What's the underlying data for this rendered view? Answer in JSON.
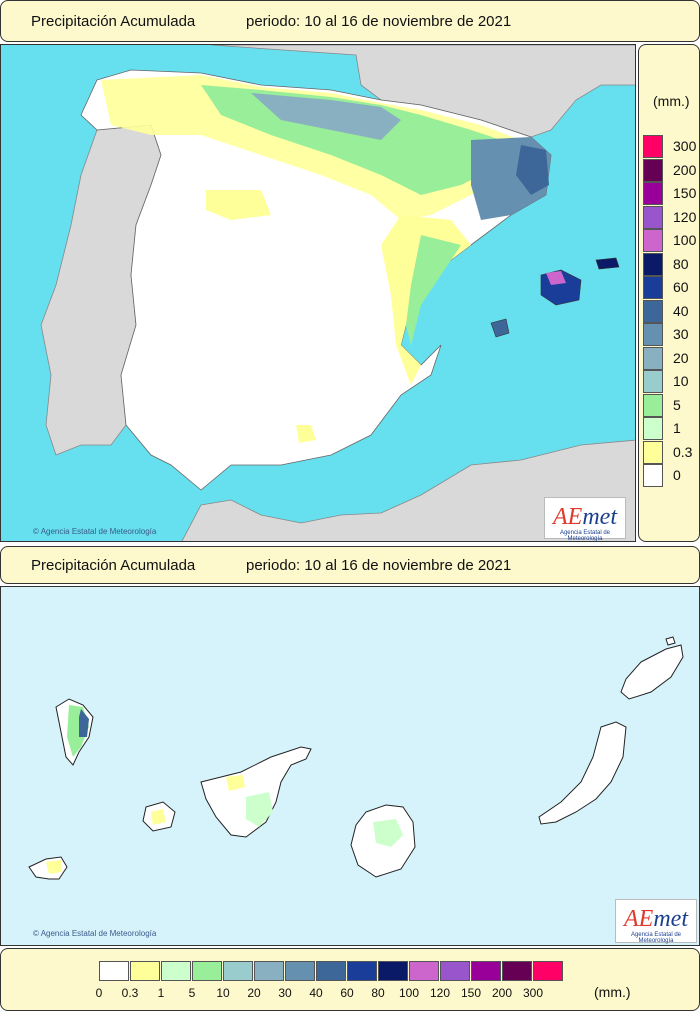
{
  "top_header": {
    "title": "Precipitación Acumulada",
    "period": "periodo: 10 al 16 de noviembre de 2021"
  },
  "bottom_header": {
    "title": "Precipitación Acumulada",
    "period": "periodo: 10 al 16 de noviembre de 2021"
  },
  "legend": {
    "unit": "(mm.)",
    "classes": [
      {
        "label": "0",
        "color": "#ffffff"
      },
      {
        "label": "0.3",
        "color": "#ffff99"
      },
      {
        "label": "1",
        "color": "#ccffcc"
      },
      {
        "label": "5",
        "color": "#99ee99"
      },
      {
        "label": "10",
        "color": "#99cccc"
      },
      {
        "label": "20",
        "color": "#88b0c0"
      },
      {
        "label": "30",
        "color": "#6690b0"
      },
      {
        "label": "40",
        "color": "#3d6699"
      },
      {
        "label": "60",
        "color": "#1a3d99"
      },
      {
        "label": "80",
        "color": "#0a1a66"
      },
      {
        "label": "100",
        "color": "#cc66cc"
      },
      {
        "label": "120",
        "color": "#9955cc"
      },
      {
        "label": "150",
        "color": "#990099"
      },
      {
        "label": "200",
        "color": "#660055"
      },
      {
        "label": "300",
        "color": "#ff0066"
      }
    ]
  },
  "credit": {
    "top": "Agencia Estatal de Meteorología",
    "bottom": "Agencia Estatal de Meteorología"
  },
  "logo": {
    "brand_a": "AE",
    "brand_b": "met",
    "tagline": "Agencia Estatal de Meteorología"
  },
  "colors": {
    "sea": "#66e0ee",
    "canary_sea": "#d6f3fb",
    "other_land": "#d9d9d9",
    "panel_bg": "#fdf9cc"
  }
}
